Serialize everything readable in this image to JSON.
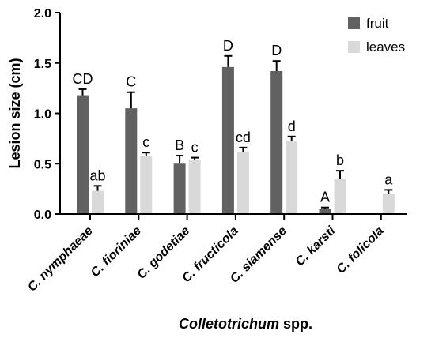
{
  "chart_data": {
    "type": "bar",
    "categories": [
      "C. nymphaeae",
      "C. fioriniae",
      "C. godetiae",
      "C. fructicola",
      "C. siamense",
      "C. karsti",
      "C. folicola"
    ],
    "series": [
      {
        "name": "fruit",
        "color": "#616161",
        "values": [
          1.18,
          1.05,
          0.5,
          1.46,
          1.42,
          0.05,
          null
        ],
        "errors": [
          0.06,
          0.16,
          0.08,
          0.11,
          0.1,
          0.015,
          null
        ],
        "letters": [
          "CD",
          "C",
          "B",
          "D",
          "D",
          "A",
          null
        ]
      },
      {
        "name": "leaves",
        "color": "#d9d9d9",
        "values": [
          0.23,
          0.58,
          0.54,
          0.62,
          0.73,
          0.35,
          0.2
        ],
        "errors": [
          0.05,
          0.03,
          0.02,
          0.04,
          0.04,
          0.08,
          0.04
        ],
        "letters": [
          "ab",
          "c",
          "c",
          "cd",
          "d",
          "b",
          "a"
        ]
      }
    ],
    "yticks": [
      "0.0",
      "0.5",
      "1.0",
      "1.5",
      "2.0"
    ],
    "ylim": [
      0,
      2.0
    ],
    "ylabel": "Lesion size (cm)",
    "xlabel_italic": "Colletotrichum",
    "xlabel_rest": " spp.",
    "legend": {
      "position": "top-right",
      "entries": [
        "fruit",
        "leaves"
      ]
    },
    "grid": false
  }
}
